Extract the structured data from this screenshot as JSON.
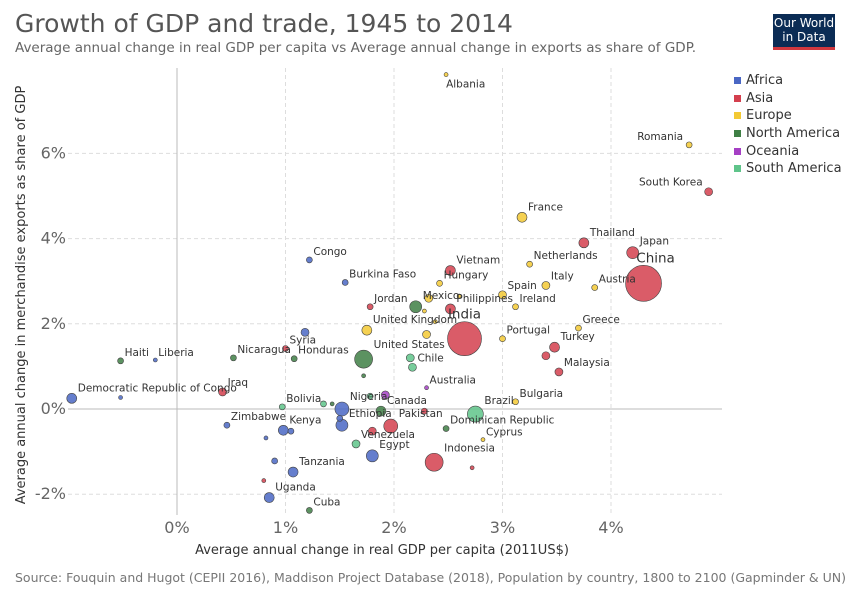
{
  "header": {
    "title": "Growth of GDP and trade, 1945 to 2014",
    "subtitle": "Average annual change in real GDP per capita vs Average annual change in exports as share of GDP.",
    "logo_line1": "Our World",
    "logo_line2": "in Data"
  },
  "footer": {
    "source": "Source: Fouquin and Hugot (CEPII 2016), Maddison Project Database (2018), Population by country, 1800 to 2100 (Gapminder & UN)"
  },
  "colors": {
    "Africa": "#4a67c4",
    "Asia": "#d43f4e",
    "Europe": "#f3c934",
    "North America": "#3f7f45",
    "Oceania": "#a53fc4",
    "South America": "#5fc48a"
  },
  "chart_data": {
    "type": "scatter",
    "title": "Growth of GDP and trade, 1945 to 2014",
    "xlabel": "Average annual change in real GDP per capita (2011US$)",
    "ylabel": "Average annual change in merchandise exports as share of GDP",
    "xlim": [
      -1.0,
      4.8
    ],
    "ylim": [
      -2.6,
      7.9
    ],
    "xticks": [
      0,
      1,
      2,
      3,
      4
    ],
    "xtick_labels": [
      "0%",
      "1%",
      "2%",
      "3%",
      "4%"
    ],
    "yticks": [
      -2,
      0,
      2,
      4,
      6
    ],
    "ytick_labels": [
      "-2%",
      "0%",
      "2%",
      "4%",
      "6%"
    ],
    "grid": true,
    "legend_position": "top-right",
    "legend": [
      "Africa",
      "Asia",
      "Europe",
      "North America",
      "Oceania",
      "South America"
    ],
    "points": [
      {
        "label": "Albania",
        "x": 2.48,
        "y": 7.85,
        "continent": "Europe",
        "size": 2
      },
      {
        "label": "Romania",
        "x": 4.72,
        "y": 6.2,
        "continent": "Europe",
        "size": 3
      },
      {
        "label": "South Korea",
        "x": 4.9,
        "y": 5.1,
        "continent": "Asia",
        "size": 4
      },
      {
        "label": "France",
        "x": 3.18,
        "y": 4.5,
        "continent": "Europe",
        "size": 5
      },
      {
        "label": "Thailand",
        "x": 3.75,
        "y": 3.9,
        "continent": "Asia",
        "size": 5
      },
      {
        "label": "Japan",
        "x": 4.2,
        "y": 3.67,
        "continent": "Asia",
        "size": 6
      },
      {
        "label": "China",
        "x": 4.3,
        "y": 2.95,
        "continent": "Asia",
        "size": 18
      },
      {
        "label": "Austria",
        "x": 3.85,
        "y": 2.85,
        "continent": "Europe",
        "size": 3
      },
      {
        "label": "Netherlands",
        "x": 3.25,
        "y": 3.4,
        "continent": "Europe",
        "size": 3
      },
      {
        "label": "Vietnam",
        "x": 2.52,
        "y": 3.25,
        "continent": "Asia",
        "size": 5
      },
      {
        "label": "Italy",
        "x": 3.4,
        "y": 2.9,
        "continent": "Europe",
        "size": 4
      },
      {
        "label": "Spain",
        "x": 3.0,
        "y": 2.68,
        "continent": "Europe",
        "size": 4
      },
      {
        "label": "Hungary",
        "x": 2.42,
        "y": 2.95,
        "continent": "Europe",
        "size": 3
      },
      {
        "label": "Ireland",
        "x": 3.12,
        "y": 2.4,
        "continent": "Europe",
        "size": 3
      },
      {
        "label": "Congo",
        "x": 1.22,
        "y": 3.5,
        "continent": "Africa",
        "size": 3
      },
      {
        "label": "Burkina Faso",
        "x": 1.55,
        "y": 2.97,
        "continent": "Africa",
        "size": 3
      },
      {
        "label": "Mexico",
        "x": 2.2,
        "y": 2.4,
        "continent": "North America",
        "size": 6
      },
      {
        "label": "Philippines",
        "x": 2.52,
        "y": 2.35,
        "continent": "Asia",
        "size": 5
      },
      {
        "label": "Jordan",
        "x": 1.78,
        "y": 2.4,
        "continent": "Asia",
        "size": 3
      },
      {
        "label": "United Kingdom",
        "x": 1.75,
        "y": 1.85,
        "continent": "Europe",
        "size": 5
      },
      {
        "label": "India",
        "x": 2.65,
        "y": 1.65,
        "continent": "Asia",
        "size": 17
      },
      {
        "label": "Portugal",
        "x": 3.0,
        "y": 1.65,
        "continent": "Europe",
        "size": 3
      },
      {
        "label": "Greece",
        "x": 3.7,
        "y": 1.9,
        "continent": "Europe",
        "size": 3
      },
      {
        "label": "Turkey",
        "x": 3.48,
        "y": 1.45,
        "continent": "Asia",
        "size": 5
      },
      {
        "label": "Malaysia",
        "x": 3.52,
        "y": 0.87,
        "continent": "Asia",
        "size": 4
      },
      {
        "label": "Syria",
        "x": 1.0,
        "y": 1.42,
        "continent": "Asia",
        "size": 3
      },
      {
        "label": "Haiti",
        "x": -0.52,
        "y": 1.13,
        "continent": "North America",
        "size": 3
      },
      {
        "label": "Liberia",
        "x": -0.2,
        "y": 1.15,
        "continent": "Africa",
        "size": 2
      },
      {
        "label": "Nicaragua",
        "x": 0.52,
        "y": 1.2,
        "continent": "North America",
        "size": 3
      },
      {
        "label": "Honduras",
        "x": 1.08,
        "y": 1.18,
        "continent": "North America",
        "size": 3
      },
      {
        "label": "United States",
        "x": 1.72,
        "y": 1.17,
        "continent": "North America",
        "size": 9
      },
      {
        "label": "Chile",
        "x": 2.17,
        "y": 0.98,
        "continent": "South America",
        "size": 4
      },
      {
        "label": "Iraq",
        "x": 0.42,
        "y": 0.4,
        "continent": "Asia",
        "size": 4
      },
      {
        "label": "Democratic Republic of Congo",
        "x": -0.97,
        "y": 0.25,
        "continent": "Africa",
        "size": 5
      },
      {
        "label": "Australia",
        "x": 2.3,
        "y": 0.5,
        "continent": "Oceania",
        "size": 2
      },
      {
        "label": "Bulgaria",
        "x": 3.12,
        "y": 0.17,
        "continent": "Europe",
        "size": 3
      },
      {
        "label": "Bolivia",
        "x": 0.97,
        "y": 0.05,
        "continent": "South America",
        "size": 3
      },
      {
        "label": "Nigeria",
        "x": 1.52,
        "y": 0.0,
        "continent": "Africa",
        "size": 7
      },
      {
        "label": "Canada",
        "x": 1.88,
        "y": -0.05,
        "continent": "North America",
        "size": 5
      },
      {
        "label": "Brazil",
        "x": 2.75,
        "y": -0.12,
        "continent": "South America",
        "size": 8
      },
      {
        "label": "Pakistan",
        "x": 1.97,
        "y": -0.4,
        "continent": "Asia",
        "size": 7
      },
      {
        "label": "Ethiopia",
        "x": 1.52,
        "y": -0.38,
        "continent": "Africa",
        "size": 6
      },
      {
        "label": "Zimbabwe",
        "x": 0.46,
        "y": -0.38,
        "continent": "Africa",
        "size": 3
      },
      {
        "label": "Kenya",
        "x": 0.98,
        "y": -0.5,
        "continent": "Africa",
        "size": 5
      },
      {
        "label": "Dominican Republic",
        "x": 2.48,
        "y": -0.46,
        "continent": "North America",
        "size": 3
      },
      {
        "label": "Cyprus",
        "x": 2.82,
        "y": -0.72,
        "continent": "Europe",
        "size": 2
      },
      {
        "label": "Venezuela",
        "x": 1.65,
        "y": -0.82,
        "continent": "South America",
        "size": 4
      },
      {
        "label": "Egypt",
        "x": 1.8,
        "y": -1.1,
        "continent": "Africa",
        "size": 6
      },
      {
        "label": "Indonesia",
        "x": 2.37,
        "y": -1.25,
        "continent": "Asia",
        "size": 9
      },
      {
        "label": "Tanzania",
        "x": 1.07,
        "y": -1.48,
        "continent": "Africa",
        "size": 5
      },
      {
        "label": "Uganda",
        "x": 0.85,
        "y": -2.08,
        "continent": "Africa",
        "size": 5
      },
      {
        "label": "Cuba",
        "x": 1.22,
        "y": -2.38,
        "continent": "North America",
        "size": 3
      },
      {
        "label": "",
        "x": 1.18,
        "y": 1.8,
        "continent": "Africa",
        "size": 4
      },
      {
        "label": "",
        "x": -0.52,
        "y": 0.27,
        "continent": "Africa",
        "size": 2
      },
      {
        "label": "",
        "x": 1.35,
        "y": 0.12,
        "continent": "South America",
        "size": 3
      },
      {
        "label": "",
        "x": 1.43,
        "y": 0.12,
        "continent": "North America",
        "size": 2
      },
      {
        "label": "",
        "x": 1.72,
        "y": 0.78,
        "continent": "North America",
        "size": 2
      },
      {
        "label": "",
        "x": 2.15,
        "y": 1.2,
        "continent": "South America",
        "size": 4
      },
      {
        "label": "",
        "x": 1.92,
        "y": 0.33,
        "continent": "Oceania",
        "size": 4
      },
      {
        "label": "",
        "x": 1.78,
        "y": 0.3,
        "continent": "South America",
        "size": 3
      },
      {
        "label": "",
        "x": 2.3,
        "y": 1.75,
        "continent": "Europe",
        "size": 4
      },
      {
        "label": "",
        "x": 2.38,
        "y": 2.05,
        "continent": "Europe",
        "size": 2
      },
      {
        "label": "",
        "x": 2.32,
        "y": 2.6,
        "continent": "Europe",
        "size": 4
      },
      {
        "label": "",
        "x": 2.28,
        "y": 2.3,
        "continent": "Europe",
        "size": 2
      },
      {
        "label": "",
        "x": 2.6,
        "y": 2.65,
        "continent": "Europe",
        "size": 2
      },
      {
        "label": "",
        "x": 2.28,
        "y": -0.05,
        "continent": "Asia",
        "size": 3
      },
      {
        "label": "",
        "x": 2.72,
        "y": -1.38,
        "continent": "Asia",
        "size": 2
      },
      {
        "label": "",
        "x": 3.4,
        "y": 1.25,
        "continent": "Asia",
        "size": 4
      },
      {
        "label": "",
        "x": 1.05,
        "y": -0.52,
        "continent": "Africa",
        "size": 3
      },
      {
        "label": "",
        "x": 0.82,
        "y": -0.68,
        "continent": "Africa",
        "size": 2
      },
      {
        "label": "",
        "x": 0.9,
        "y": -1.22,
        "continent": "Africa",
        "size": 3
      },
      {
        "label": "",
        "x": 0.8,
        "y": -1.68,
        "continent": "Asia",
        "size": 2
      },
      {
        "label": "",
        "x": 1.8,
        "y": -0.52,
        "continent": "Asia",
        "size": 4
      },
      {
        "label": "",
        "x": 1.5,
        "y": -0.22,
        "continent": "Africa",
        "size": 3
      }
    ]
  }
}
